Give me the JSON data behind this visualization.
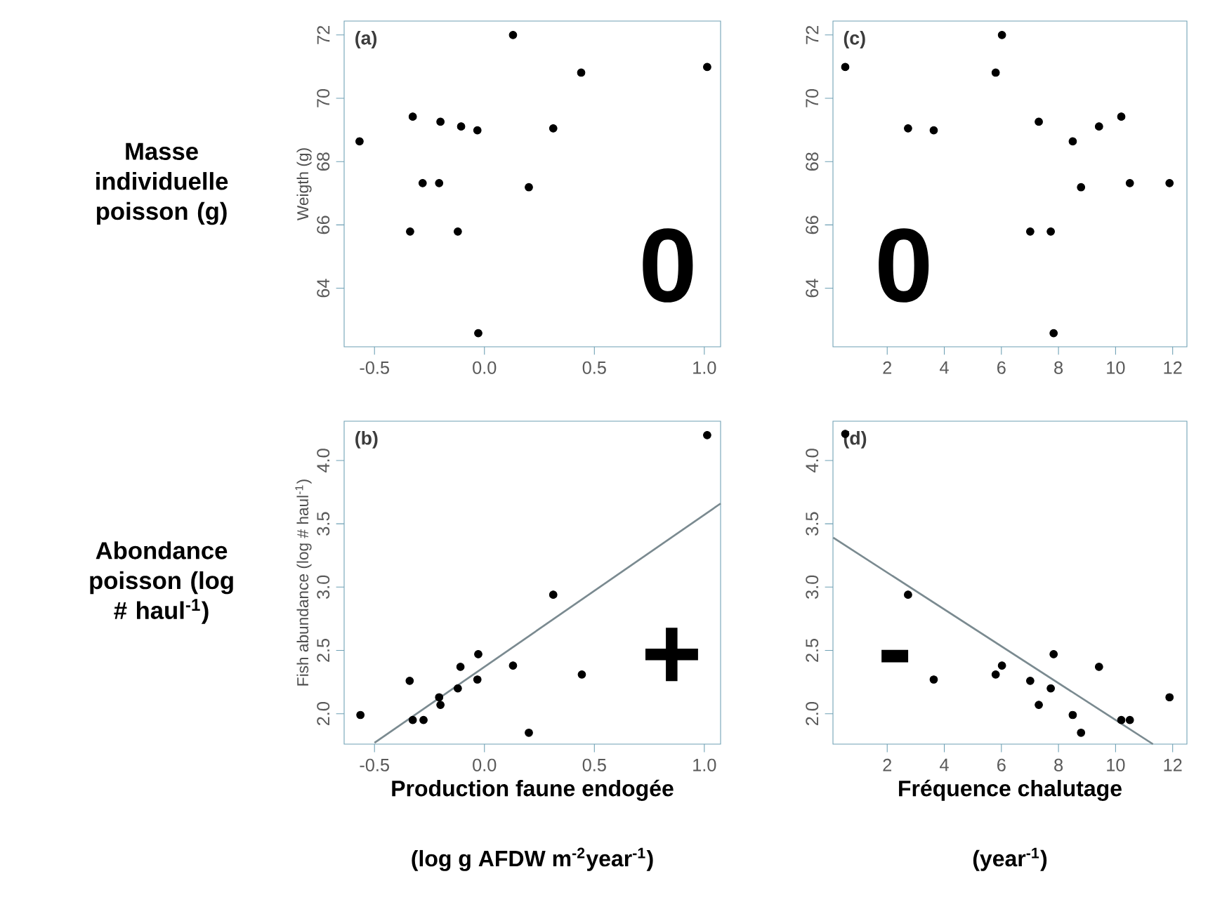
{
  "chart_data": [
    {
      "type": "scatter",
      "title": "(a)",
      "ylabel": "Weigth (g)",
      "annotations": [
        "Masse individuelle poisson (g)",
        "0"
      ],
      "xlim": [
        -0.638,
        1.074
      ],
      "ylim": [
        62.15,
        72.44
      ],
      "xticks": [
        {
          "value": -0.5,
          "label": "-0.5"
        },
        {
          "value": 0,
          "label": "0.0"
        },
        {
          "value": 0.5,
          "label": "0.5"
        },
        {
          "value": 1,
          "label": "1.0"
        }
      ],
      "yticks": [
        64,
        66,
        68,
        70,
        72
      ],
      "x": [
        -0.568,
        -0.326,
        -0.2,
        -0.106,
        -0.032,
        -0.281,
        -0.206,
        0.202,
        0.313,
        -0.338,
        -0.121,
        -0.028,
        0.13,
        0.44,
        1.013
      ],
      "series": [
        {
          "marker": "circle",
          "color": "#000000",
          "values": [
            68.64,
            69.42,
            69.26,
            69.11,
            68.99,
            67.32,
            67.32,
            67.19,
            69.05,
            65.79,
            65.79,
            62.58,
            72.0,
            70.81,
            70.99
          ]
        }
      ]
    },
    {
      "type": "scatter",
      "title": "(c)",
      "annotations": [
        "0"
      ],
      "xlim": [
        0.1,
        12.5
      ],
      "ylim": [
        62.15,
        72.44
      ],
      "xticks": [
        2,
        4,
        6,
        8,
        10,
        12
      ],
      "yticks": [
        64,
        66,
        68,
        70,
        72
      ],
      "x": [
        0.53,
        2.73,
        3.63,
        5.8,
        6.02,
        7.01,
        7.31,
        7.73,
        7.83,
        8.5,
        8.79,
        9.42,
        10.2,
        10.5,
        11.89
      ],
      "series": [
        {
          "marker": "circle",
          "color": "#000000",
          "values": [
            70.99,
            69.05,
            68.99,
            70.81,
            72.0,
            65.79,
            69.26,
            65.79,
            62.58,
            68.64,
            67.19,
            69.11,
            69.42,
            67.32,
            67.32
          ]
        }
      ]
    },
    {
      "type": "scatter",
      "title": "(b)",
      "ylabel": "Fish abundance (log # haul$^{-1}$)",
      "xlabel": "Production faune endogée",
      "annotations": [
        "Abondance poisson (log # haul$^{-1}$)",
        "+",
        "(log g AFDW m$^{-2}$year$^{-1}$)"
      ],
      "xlim": [
        -0.638,
        1.074
      ],
      "ylim": [
        1.76,
        4.31
      ],
      "xticks": [
        {
          "value": -0.5,
          "label": "-0.5"
        },
        {
          "value": 0,
          "label": "0.0"
        },
        {
          "value": 0.5,
          "label": "0.5"
        },
        {
          "value": 1,
          "label": "1.0"
        }
      ],
      "yticks": [
        {
          "value": 2,
          "label": "2.0"
        },
        2.5,
        {
          "value": 3,
          "label": "3.0"
        },
        3.5,
        {
          "value": 4,
          "label": "4.0"
        }
      ],
      "x": [
        -0.564,
        -0.34,
        -0.326,
        -0.277,
        -0.206,
        -0.2,
        -0.121,
        -0.109,
        -0.028,
        -0.032,
        0.13,
        0.202,
        0.313,
        0.443,
        1.013
      ],
      "series": [
        {
          "marker": "circle",
          "color": "#000000",
          "values": [
            1.99,
            2.26,
            1.95,
            1.95,
            2.13,
            2.07,
            2.2,
            2.37,
            2.47,
            2.27,
            2.38,
            1.85,
            2.94,
            2.31,
            4.2
          ]
        },
        {
          "type": "line",
          "marker": "none",
          "color": "#7a8a90",
          "x": [
            -0.5,
            1.074
          ],
          "values": [
            1.77,
            3.66
          ]
        }
      ]
    },
    {
      "type": "scatter",
      "title": "(d)",
      "xlabel": "Fréquence chalutage",
      "annotations": [
        "-",
        "(year$^{-1}$)"
      ],
      "xlim": [
        0.1,
        12.5
      ],
      "ylim": [
        1.76,
        4.31
      ],
      "xticks": [
        2,
        4,
        6,
        8,
        10,
        12
      ],
      "yticks": [
        {
          "value": 2,
          "label": "2.0"
        },
        2.5,
        {
          "value": 3,
          "label": "3.0"
        },
        3.5,
        {
          "value": 4,
          "label": "4.0"
        }
      ],
      "x": [
        0.53,
        2.73,
        3.63,
        5.8,
        6.02,
        7.01,
        7.31,
        7.73,
        7.83,
        8.5,
        8.79,
        9.42,
        10.2,
        10.5,
        11.89
      ],
      "series": [
        {
          "marker": "circle",
          "color": "#000000",
          "values": [
            4.21,
            2.94,
            2.27,
            2.31,
            2.38,
            2.26,
            2.07,
            2.2,
            2.47,
            1.99,
            1.85,
            2.37,
            1.95,
            1.95,
            2.13
          ]
        },
        {
          "type": "line",
          "marker": "none",
          "color": "#7a8a90",
          "x": [
            0.11,
            11.31
          ],
          "values": [
            3.39,
            1.76
          ]
        }
      ]
    }
  ]
}
